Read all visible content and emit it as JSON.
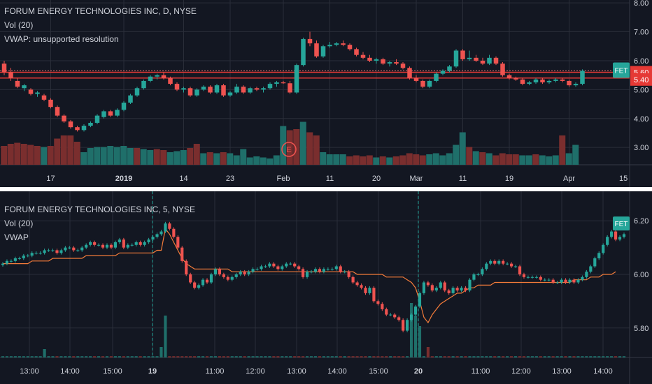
{
  "colors": {
    "background": "#131722",
    "grid": "#2a2e39",
    "up": "#26a69a",
    "down": "#ef5350",
    "vol_up": "#1f6f6a",
    "vol_down": "#7a2e2e",
    "vwap": "#f57c3a",
    "hline": "#e53935",
    "text": "#d1d4dc",
    "tag_bg": "#26a69a"
  },
  "top": {
    "legend": {
      "title": "FORUM ENERGY TECHNOLOGIES INC, D, NYSE",
      "vol": "Vol (20)",
      "vwap": "VWAP: unsupported resolution"
    },
    "symbol_tag": "FET",
    "hline_tags": [
      "5.60",
      "5.40"
    ],
    "earnings_marker": "E",
    "chart_data": {
      "type": "candlestick",
      "interval": "D",
      "ylim": [
        2.4,
        8.1
      ],
      "y_ticks": [
        "8.00",
        "7.00",
        "6.00",
        "5.00",
        "4.00",
        "3.00"
      ],
      "x_ticks": [
        "17",
        "2019",
        "14",
        "23",
        "Feb",
        "11",
        "20",
        "Mar",
        "11",
        "19",
        "Apr",
        "15"
      ],
      "horizontal_lines": [
        5.6,
        5.4
      ],
      "ohlc": [
        [
          5.9,
          6.0,
          5.5,
          5.6
        ],
        [
          5.6,
          5.75,
          5.3,
          5.4
        ],
        [
          5.3,
          5.4,
          5.05,
          5.1
        ],
        [
          5.05,
          5.2,
          4.95,
          5.15
        ],
        [
          5.0,
          5.05,
          4.8,
          4.85
        ],
        [
          4.85,
          4.95,
          4.75,
          4.9
        ],
        [
          4.8,
          4.85,
          4.6,
          4.65
        ],
        [
          4.65,
          4.7,
          4.35,
          4.4
        ],
        [
          4.4,
          4.45,
          4.05,
          4.1
        ],
        [
          4.1,
          4.15,
          3.85,
          3.9
        ],
        [
          3.9,
          3.95,
          3.65,
          3.7
        ],
        [
          3.7,
          3.75,
          3.55,
          3.6
        ],
        [
          3.6,
          3.8,
          3.55,
          3.75
        ],
        [
          3.75,
          3.9,
          3.7,
          3.85
        ],
        [
          3.85,
          4.15,
          3.8,
          4.1
        ],
        [
          4.05,
          4.3,
          4.0,
          4.25
        ],
        [
          4.25,
          4.3,
          4.05,
          4.1
        ],
        [
          4.1,
          4.35,
          4.05,
          4.3
        ],
        [
          4.3,
          4.6,
          4.25,
          4.55
        ],
        [
          4.55,
          4.85,
          4.5,
          4.8
        ],
        [
          4.8,
          5.1,
          4.75,
          5.05
        ],
        [
          5.05,
          5.35,
          5.0,
          5.3
        ],
        [
          5.3,
          5.5,
          5.25,
          5.45
        ],
        [
          5.45,
          5.55,
          5.35,
          5.5
        ],
        [
          5.5,
          5.6,
          5.35,
          5.4
        ],
        [
          5.4,
          5.45,
          5.15,
          5.2
        ],
        [
          5.2,
          5.25,
          4.95,
          5.0
        ],
        [
          5.0,
          5.1,
          4.9,
          5.05
        ],
        [
          5.05,
          5.1,
          4.75,
          4.8
        ],
        [
          4.8,
          5.05,
          4.75,
          5.0
        ],
        [
          5.0,
          5.15,
          4.95,
          5.1
        ],
        [
          5.1,
          5.15,
          4.85,
          4.9
        ],
        [
          4.9,
          5.2,
          4.85,
          5.15
        ],
        [
          5.15,
          5.2,
          4.75,
          4.8
        ],
        [
          4.8,
          4.95,
          4.75,
          4.9
        ],
        [
          4.9,
          5.2,
          4.85,
          5.1
        ],
        [
          5.1,
          5.15,
          4.85,
          4.9
        ],
        [
          4.9,
          5.1,
          4.85,
          5.05
        ],
        [
          5.05,
          5.1,
          4.95,
          5.0
        ],
        [
          5.0,
          5.1,
          4.9,
          5.05
        ],
        [
          5.05,
          5.25,
          5.0,
          5.2
        ],
        [
          5.2,
          5.3,
          5.1,
          5.25
        ],
        [
          5.25,
          5.3,
          5.2,
          5.22
        ],
        [
          5.22,
          5.3,
          4.85,
          4.9
        ],
        [
          4.9,
          5.9,
          4.85,
          5.85
        ],
        [
          5.85,
          6.8,
          5.8,
          6.75
        ],
        [
          6.75,
          7.0,
          6.5,
          6.6
        ],
        [
          6.6,
          6.7,
          6.1,
          6.15
        ],
        [
          6.15,
          6.55,
          6.1,
          6.5
        ],
        [
          6.5,
          6.65,
          6.45,
          6.55
        ],
        [
          6.55,
          6.65,
          6.5,
          6.6
        ],
        [
          6.6,
          6.7,
          6.5,
          6.55
        ],
        [
          6.55,
          6.6,
          6.35,
          6.4
        ],
        [
          6.4,
          6.45,
          6.15,
          6.2
        ],
        [
          6.2,
          6.3,
          6.05,
          6.1
        ],
        [
          6.1,
          6.2,
          5.95,
          6.0
        ],
        [
          6.0,
          6.1,
          5.9,
          6.05
        ],
        [
          6.05,
          6.1,
          5.85,
          5.9
        ],
        [
          5.9,
          6.0,
          5.8,
          5.95
        ],
        [
          5.95,
          6.05,
          5.85,
          5.9
        ],
        [
          5.9,
          5.95,
          5.7,
          5.75
        ],
        [
          5.75,
          5.8,
          5.35,
          5.4
        ],
        [
          5.4,
          5.5,
          5.25,
          5.3
        ],
        [
          5.3,
          5.35,
          5.05,
          5.1
        ],
        [
          5.1,
          5.35,
          5.05,
          5.3
        ],
        [
          5.3,
          5.6,
          5.25,
          5.55
        ],
        [
          5.55,
          5.7,
          5.5,
          5.65
        ],
        [
          5.65,
          5.85,
          5.6,
          5.8
        ],
        [
          5.8,
          6.4,
          5.75,
          6.35
        ],
        [
          6.35,
          6.4,
          6.0,
          6.05
        ],
        [
          6.05,
          6.35,
          6.0,
          6.1
        ],
        [
          6.1,
          6.2,
          5.95,
          6.0
        ],
        [
          6.0,
          6.1,
          5.85,
          5.9
        ],
        [
          5.9,
          6.2,
          5.85,
          6.1
        ],
        [
          6.1,
          6.15,
          5.85,
          5.9
        ],
        [
          5.9,
          5.95,
          5.45,
          5.5
        ],
        [
          5.5,
          5.55,
          5.35,
          5.4
        ],
        [
          5.4,
          5.45,
          5.3,
          5.35
        ],
        [
          5.35,
          5.4,
          5.15,
          5.2
        ],
        [
          5.2,
          5.3,
          5.15,
          5.25
        ],
        [
          5.25,
          5.4,
          5.2,
          5.35
        ],
        [
          5.35,
          5.4,
          5.2,
          5.25
        ],
        [
          5.25,
          5.35,
          5.2,
          5.3
        ],
        [
          5.3,
          5.4,
          5.25,
          5.35
        ],
        [
          5.35,
          5.4,
          5.25,
          5.3
        ],
        [
          5.3,
          5.35,
          5.1,
          5.15
        ],
        [
          5.15,
          5.25,
          5.1,
          5.2
        ],
        [
          5.2,
          5.7,
          5.15,
          5.65
        ]
      ],
      "volume": [
        [
          0.9,
          "d"
        ],
        [
          1.0,
          "d"
        ],
        [
          1.05,
          "d"
        ],
        [
          1.0,
          "d"
        ],
        [
          0.95,
          "d"
        ],
        [
          0.9,
          "d"
        ],
        [
          0.85,
          "u"
        ],
        [
          0.9,
          "d"
        ],
        [
          1.25,
          "d"
        ],
        [
          1.4,
          "d"
        ],
        [
          1.4,
          "d"
        ],
        [
          1.1,
          "d"
        ],
        [
          0.6,
          "u"
        ],
        [
          0.8,
          "u"
        ],
        [
          0.85,
          "u"
        ],
        [
          0.85,
          "u"
        ],
        [
          0.9,
          "u"
        ],
        [
          0.85,
          "u"
        ],
        [
          0.9,
          "u"
        ],
        [
          0.8,
          "u"
        ],
        [
          0.8,
          "d"
        ],
        [
          0.75,
          "u"
        ],
        [
          0.7,
          "u"
        ],
        [
          0.75,
          "d"
        ],
        [
          0.7,
          "d"
        ],
        [
          0.6,
          "u"
        ],
        [
          0.65,
          "u"
        ],
        [
          0.7,
          "u"
        ],
        [
          0.8,
          "d"
        ],
        [
          1.0,
          "d"
        ],
        [
          0.55,
          "u"
        ],
        [
          0.6,
          "d"
        ],
        [
          0.55,
          "u"
        ],
        [
          0.6,
          "d"
        ],
        [
          0.55,
          "u"
        ],
        [
          0.45,
          "u"
        ],
        [
          0.75,
          "u"
        ],
        [
          0.35,
          "u"
        ],
        [
          0.4,
          "u"
        ],
        [
          0.35,
          "u"
        ],
        [
          0.3,
          "u"
        ],
        [
          0.45,
          "u"
        ],
        [
          1.85,
          "u"
        ],
        [
          1.65,
          "d"
        ],
        [
          1.7,
          "d"
        ],
        [
          2.05,
          "u"
        ],
        [
          1.55,
          "d"
        ],
        [
          1.4,
          "d"
        ],
        [
          0.6,
          "u"
        ],
        [
          0.5,
          "u"
        ],
        [
          0.5,
          "u"
        ],
        [
          0.5,
          "u"
        ],
        [
          0.4,
          "d"
        ],
        [
          0.45,
          "d"
        ],
        [
          0.4,
          "d"
        ],
        [
          0.45,
          "d"
        ],
        [
          0.35,
          "u"
        ],
        [
          0.4,
          "d"
        ],
        [
          0.35,
          "u"
        ],
        [
          0.4,
          "d"
        ],
        [
          0.45,
          "d"
        ],
        [
          0.55,
          "d"
        ],
        [
          0.5,
          "d"
        ],
        [
          0.45,
          "d"
        ],
        [
          0.5,
          "u"
        ],
        [
          0.55,
          "u"
        ],
        [
          0.45,
          "u"
        ],
        [
          0.55,
          "u"
        ],
        [
          0.95,
          "u"
        ],
        [
          1.55,
          "u"
        ],
        [
          0.85,
          "d"
        ],
        [
          0.65,
          "u"
        ],
        [
          0.6,
          "d"
        ],
        [
          0.55,
          "u"
        ],
        [
          0.45,
          "d"
        ],
        [
          0.55,
          "d"
        ],
        [
          0.5,
          "d"
        ],
        [
          0.5,
          "d"
        ],
        [
          0.45,
          "u"
        ],
        [
          0.45,
          "u"
        ],
        [
          0.5,
          "d"
        ],
        [
          0.45,
          "u"
        ],
        [
          0.4,
          "u"
        ],
        [
          0.45,
          "u"
        ],
        [
          1.4,
          "d"
        ],
        [
          0.55,
          "u"
        ],
        [
          0.95,
          "u"
        ]
      ]
    }
  },
  "bottom": {
    "legend": {
      "title": "FORUM ENERGY TECHNOLOGIES INC, 5, NYSE",
      "vol": "Vol (20)",
      "vwap": "VWAP"
    },
    "symbol_tag": "FET",
    "chart_data": {
      "type": "candlestick",
      "interval": "5",
      "ylim": [
        5.69,
        6.31
      ],
      "y_ticks": [
        "6.20",
        "6.00",
        "5.80"
      ],
      "x_ticks": [
        "13:00",
        "14:00",
        "15:00",
        "19",
        "11:00",
        "12:00",
        "13:00",
        "14:00",
        "15:00",
        "20",
        "11:00",
        "12:00",
        "13:00",
        "14:00"
      ],
      "closes": [
        6.04,
        6.05,
        6.05,
        6.06,
        6.06,
        6.07,
        6.07,
        6.08,
        6.08,
        6.08,
        6.09,
        6.09,
        6.09,
        6.08,
        6.09,
        6.1,
        6.1,
        6.09,
        6.09,
        6.1,
        6.11,
        6.12,
        6.11,
        6.11,
        6.1,
        6.11,
        6.1,
        6.12,
        6.13,
        6.1,
        6.11,
        6.11,
        6.12,
        6.11,
        6.12,
        6.13,
        6.14,
        6.15,
        6.16,
        6.19,
        6.17,
        6.14,
        6.1,
        6.05,
        6.0,
        5.97,
        5.95,
        5.96,
        5.98,
        5.97,
        6.0,
        6.02,
        6.0,
        5.99,
        5.98,
        5.99,
        6.0,
        6.01,
        6.0,
        6.01,
        6.02,
        6.02,
        6.03,
        6.03,
        6.04,
        6.03,
        6.02,
        6.03,
        6.04,
        6.04,
        6.03,
        6.02,
        5.99,
        6.01,
        6.01,
        6.02,
        6.01,
        6.02,
        6.02,
        6.02,
        6.03,
        6.01,
        6.01,
        5.99,
        5.97,
        5.96,
        5.95,
        5.93,
        5.95,
        5.9,
        5.89,
        5.87,
        5.85,
        5.85,
        5.84,
        5.83,
        5.79,
        5.83,
        5.85,
        5.88,
        5.93,
        5.97,
        5.96,
        5.94,
        5.95,
        5.97,
        5.94,
        5.93,
        5.95,
        5.94,
        5.95,
        5.94,
        5.98,
        6.0,
        6.0,
        6.02,
        6.04,
        6.05,
        6.04,
        6.05,
        6.04,
        6.04,
        6.03,
        6.03,
        6.0,
        5.99,
        5.99,
        5.99,
        5.99,
        5.98,
        5.98,
        5.98,
        5.97,
        5.97,
        5.98,
        5.97,
        5.98,
        5.97,
        5.98,
        5.99,
        6.01,
        6.03,
        6.06,
        6.08,
        6.11,
        6.14,
        6.16,
        6.13,
        6.14,
        6.15
      ],
      "vwap": [
        6.04,
        6.04,
        6.04,
        6.04,
        6.04,
        6.04,
        6.04,
        6.05,
        6.05,
        6.05,
        6.05,
        6.05,
        6.06,
        6.06,
        6.06,
        6.06,
        6.06,
        6.06,
        6.06,
        6.06,
        6.07,
        6.07,
        6.07,
        6.07,
        6.07,
        6.07,
        6.07,
        6.07,
        6.08,
        6.08,
        6.08,
        6.08,
        6.08,
        6.08,
        6.08,
        6.08,
        6.08,
        6.09,
        6.09,
        6.17,
        6.15,
        6.12,
        6.09,
        6.06,
        6.04,
        6.03,
        6.02,
        6.02,
        6.02,
        6.02,
        6.02,
        6.02,
        6.02,
        6.02,
        6.02,
        6.01,
        6.01,
        6.01,
        6.01,
        6.01,
        6.01,
        6.01,
        6.01,
        6.01,
        6.01,
        6.01,
        6.01,
        6.01,
        6.01,
        6.01,
        6.01,
        6.01,
        6.01,
        6.01,
        6.01,
        6.01,
        6.01,
        6.01,
        6.01,
        6.01,
        6.01,
        6.01,
        6.01,
        6.01,
        6.01,
        6.0,
        6.0,
        6.0,
        6.0,
        6.0,
        6.0,
        6.0,
        5.99,
        5.99,
        5.99,
        5.99,
        5.99,
        5.98,
        5.97,
        5.95,
        5.9,
        5.84,
        5.82,
        5.85,
        5.87,
        5.89,
        5.9,
        5.91,
        5.92,
        5.93,
        5.93,
        5.94,
        5.95,
        5.95,
        5.96,
        5.96,
        5.96,
        5.96,
        5.97,
        5.97,
        5.97,
        5.97,
        5.97,
        5.97,
        5.97,
        5.97,
        5.97,
        5.97,
        5.97,
        5.97,
        5.97,
        5.97,
        5.97,
        5.97,
        5.97,
        5.97,
        5.97,
        5.98,
        5.98,
        5.98,
        5.98,
        5.99,
        5.99,
        5.99,
        6.0,
        6.0,
        6.0,
        6.01
      ],
      "volume_spikes": [
        {
          "index": 39,
          "value": 1.0
        },
        {
          "index": 38,
          "value": 0.25
        },
        {
          "index": 10,
          "value": 0.2
        },
        {
          "index": 98,
          "value": 1.3
        },
        {
          "index": 99,
          "value": 1.0
        },
        {
          "index": 100,
          "value": 0.75
        },
        {
          "index": 102,
          "value": 0.25
        }
      ],
      "session_breaks": [
        39,
        102
      ]
    }
  }
}
